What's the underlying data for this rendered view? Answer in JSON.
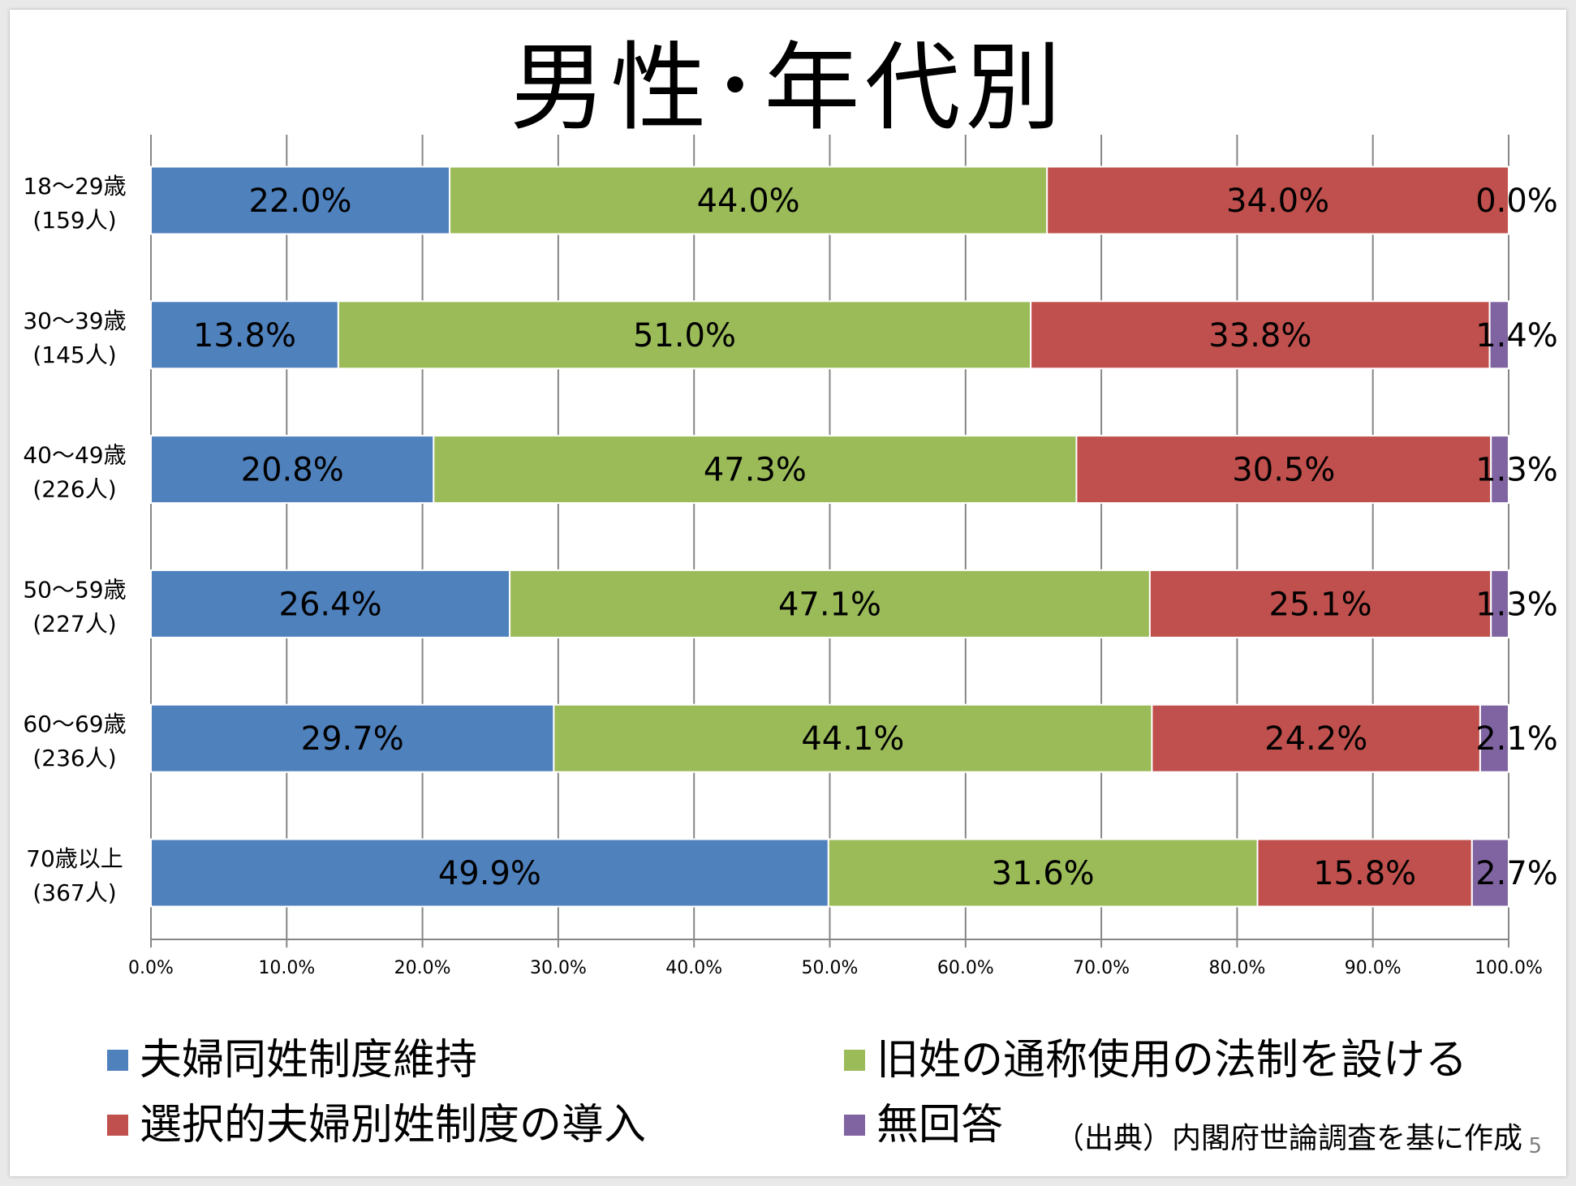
{
  "title": "男性･年代別",
  "chart_data": {
    "type": "bar",
    "orientation": "horizontal",
    "stacked": true,
    "categories": [
      "18～29歳\n(159人)",
      "30～39歳\n(145人)",
      "40～49歳\n(226人)",
      "50～59歳\n(227人)",
      "60～69歳\n(236人)",
      "70歳以上\n(367人)"
    ],
    "series": [
      {
        "name": "夫婦同姓制度維持",
        "color": "#4f81bd",
        "values": [
          22.0,
          13.8,
          20.8,
          26.4,
          29.7,
          49.9
        ]
      },
      {
        "name": "旧姓の通称使用の法制を設ける",
        "color": "#9bbb59",
        "values": [
          44.0,
          51.0,
          47.3,
          47.1,
          44.1,
          31.6
        ]
      },
      {
        "name": "選択的夫婦別姓制度の導入",
        "color": "#c0504d",
        "values": [
          34.0,
          33.8,
          30.5,
          25.1,
          24.2,
          15.8
        ]
      },
      {
        "name": "無回答",
        "color": "#8064a2",
        "values": [
          0.0,
          1.4,
          1.3,
          1.3,
          2.1,
          2.7
        ]
      }
    ],
    "data_labels": [
      [
        "22.0%",
        "44.0%",
        "34.0%",
        "0.0%"
      ],
      [
        "13.8%",
        "51.0%",
        "33.8%",
        "1.4%"
      ],
      [
        "20.8%",
        "47.3%",
        "30.5%",
        "1.3%"
      ],
      [
        "26.4%",
        "47.1%",
        "25.1%",
        "1.3%"
      ],
      [
        "29.7%",
        "44.1%",
        "24.2%",
        "2.1%"
      ],
      [
        "49.9%",
        "31.6%",
        "15.8%",
        "2.7%"
      ]
    ],
    "x_ticks": [
      "0.0%",
      "10.0%",
      "20.0%",
      "30.0%",
      "40.0%",
      "50.0%",
      "60.0%",
      "70.0%",
      "80.0%",
      "90.0%",
      "100.0%"
    ],
    "xlim": [
      0,
      100
    ],
    "grid": true,
    "legend_position": "bottom"
  },
  "source_note": "（出典）内閣府世論調査を基に作成",
  "page_number": "5"
}
